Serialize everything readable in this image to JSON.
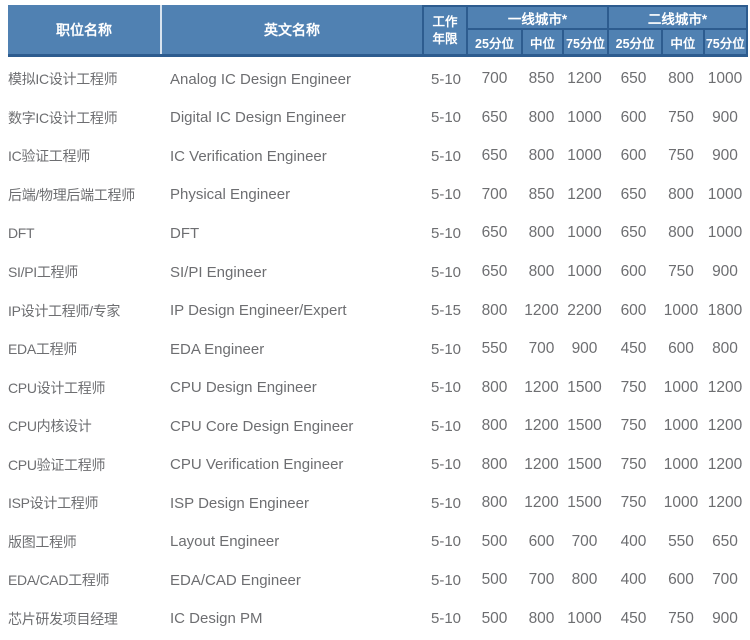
{
  "header": {
    "job_title": "职位名称",
    "english_name": "英文名称",
    "work_years_l1": "工作",
    "work_years_l2": "年限",
    "tier1_group": "一线城市*",
    "tier2_group": "二线城市*",
    "p25": "25分位",
    "median": "中位",
    "p75": "75分位"
  },
  "colors": {
    "header_bg": "#5081b2",
    "header_border_dark": "#2d5c8f",
    "header_divider_light": "#d9e4ef",
    "header_text": "#ffffff",
    "body_text": "#6d6e71"
  },
  "chart_data": {
    "type": "table",
    "columns": [
      "职位名称",
      "英文名称",
      "工作年限",
      "一线城市 25分位",
      "一线城市 中位",
      "一线城市 75分位",
      "二线城市 25分位",
      "二线城市 中位",
      "二线城市 75分位"
    ],
    "rows": [
      [
        "模拟IC设计工程师",
        "Analog IC Design Engineer",
        "5-10",
        700,
        850,
        1200,
        650,
        800,
        1000
      ],
      [
        "数字IC设计工程师",
        "Digital IC Design Engineer",
        "5-10",
        650,
        800,
        1000,
        600,
        750,
        900
      ],
      [
        "IC验证工程师",
        "IC Verification Engineer",
        "5-10",
        650,
        800,
        1000,
        600,
        750,
        900
      ],
      [
        "后端/物理后端工程师",
        "Physical Engineer",
        "5-10",
        700,
        850,
        1200,
        650,
        800,
        1000
      ],
      [
        "DFT",
        "DFT",
        "5-10",
        650,
        800,
        1000,
        650,
        800,
        1000
      ],
      [
        "SI/PI工程师",
        "SI/PI Engineer",
        "5-10",
        650,
        800,
        1000,
        600,
        750,
        900
      ],
      [
        "IP设计工程师/专家",
        "IP Design Engineer/Expert",
        "5-15",
        800,
        1200,
        2200,
        600,
        1000,
        1800
      ],
      [
        "EDA工程师",
        "EDA  Engineer",
        "5-10",
        550,
        700,
        900,
        450,
        600,
        800
      ],
      [
        "CPU设计工程师",
        "CPU Design Engineer",
        "5-10",
        800,
        1200,
        1500,
        750,
        1000,
        1200
      ],
      [
        "CPU内核设计",
        "CPU Core Design Engineer",
        "5-10",
        800,
        1200,
        1500,
        750,
        1000,
        1200
      ],
      [
        "CPU验证工程师",
        "CPU Verification Engineer",
        "5-10",
        800,
        1200,
        1500,
        750,
        1000,
        1200
      ],
      [
        "ISP设计工程师",
        "ISP Design Engineer",
        "5-10",
        800,
        1200,
        1500,
        750,
        1000,
        1200
      ],
      [
        "版图工程师",
        "Layout Engineer",
        "5-10",
        500,
        600,
        700,
        400,
        550,
        650
      ],
      [
        "EDA/CAD工程师",
        "EDA/CAD Engineer",
        "5-10",
        500,
        700,
        800,
        400,
        600,
        700
      ],
      [
        "芯片研发项目经理",
        "IC Design PM",
        "5-10",
        500,
        800,
        1000,
        450,
        750,
        900
      ]
    ]
  }
}
